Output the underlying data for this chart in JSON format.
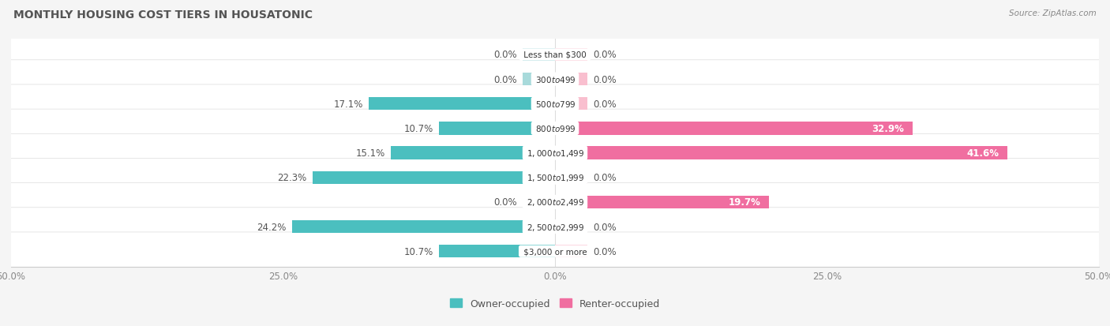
{
  "title": "MONTHLY HOUSING COST TIERS IN HOUSATONIC",
  "source": "Source: ZipAtlas.com",
  "categories": [
    "Less than $300",
    "$300 to $499",
    "$500 to $799",
    "$800 to $999",
    "$1,000 to $1,499",
    "$1,500 to $1,999",
    "$2,000 to $2,499",
    "$2,500 to $2,999",
    "$3,000 or more"
  ],
  "owner_values": [
    0.0,
    0.0,
    17.1,
    10.7,
    15.1,
    22.3,
    0.0,
    24.2,
    10.7
  ],
  "renter_values": [
    0.0,
    0.0,
    0.0,
    32.9,
    41.6,
    0.0,
    19.7,
    0.0,
    0.0
  ],
  "owner_color": "#4BBFBF",
  "renter_color": "#F06EA0",
  "owner_color_zero": "#A8DADB",
  "renter_color_zero": "#F9BFCF",
  "axis_limit": 50.0,
  "bar_height": 0.52,
  "zero_stub": 3.0,
  "background_color": "#f5f5f5",
  "row_bg_color": "#ebebeb",
  "row_alt_bg_color": "#f2f2f2",
  "label_fontsize": 8.5,
  "cat_fontsize": 7.5,
  "title_fontsize": 10,
  "source_fontsize": 7.5
}
